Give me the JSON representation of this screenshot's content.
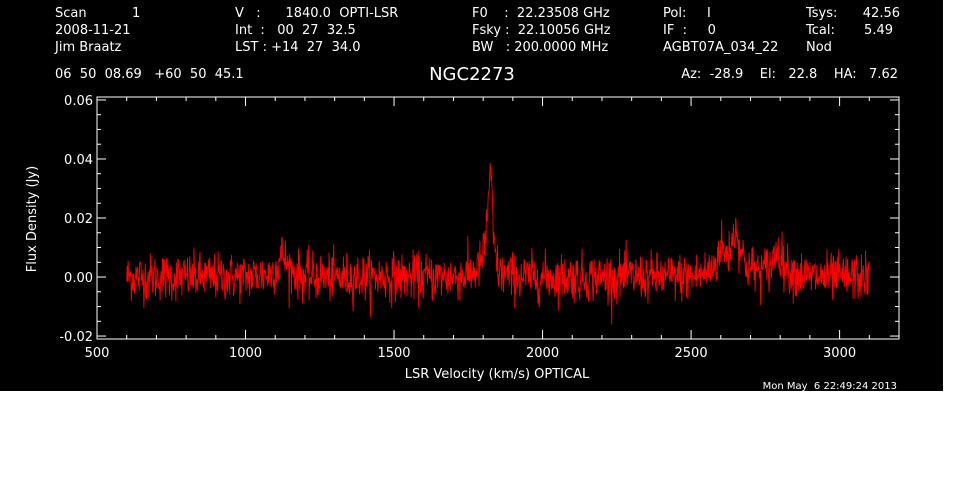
{
  "header": {
    "col1": [
      "Scan           1",
      "2008-11-21",
      "Jim Braatz"
    ],
    "col2": [
      "V   :      1840.0  OPTI-LSR",
      "Int  :   00  27  32.5",
      "LST : +14  27  34.0"
    ],
    "col3": [
      "F0    :  22.23508 GHz",
      "Fsky :  22.10056 GHz",
      "BW   : 200.0000 MHz"
    ],
    "col4": [
      "Pol:     I",
      "IF  :     0",
      "AGBT07A_034_22"
    ],
    "col5_labels": [
      "Tsys:",
      "Tcal:",
      "Nod"
    ],
    "col5_values": [
      "42.56",
      "5.49",
      ""
    ],
    "coords": "06  50  08.69   +60  50  45.1",
    "source": "NGC2273",
    "azelha": "Az:  -28.9    El:   22.8    HA:   7.62",
    "timestamp": "Mon May  6 22:49:24 2013"
  },
  "chart_data": {
    "type": "line",
    "title": "NGC2273",
    "xlabel": "LSR Velocity (km/s) OPTICAL",
    "ylabel": "Flux Density (Jy)",
    "xlim": [
      500,
      3200
    ],
    "ylim": [
      -0.021,
      0.061
    ],
    "x_ticks": [
      500,
      1000,
      1500,
      2000,
      2500,
      3000
    ],
    "y_ticks": [
      -0.02,
      0.0,
      0.02,
      0.04,
      0.06
    ],
    "y_tick_labels": [
      "-0.02",
      "0.00",
      "0.02",
      "0.04",
      "0.06"
    ],
    "line_color": "#ff0000",
    "axis_color": "#ffffff",
    "background": "#000000",
    "noise_rms": 0.004,
    "series": [
      {
        "x": [
          600,
          700,
          800,
          900,
          1000,
          1080,
          1110,
          1125,
          1140,
          1170,
          1200,
          1300,
          1400,
          1500,
          1600,
          1700,
          1760,
          1790,
          1805,
          1815,
          1822,
          1828,
          1834,
          1845,
          1860,
          1900,
          2000,
          2100,
          2200,
          2300,
          2400,
          2500,
          2560,
          2590,
          2600,
          2615,
          2625,
          2640,
          2655,
          2665,
          2680,
          2700,
          2740,
          2770,
          2790,
          2810,
          2830,
          2860,
          2900,
          3000,
          3100
        ],
        "y": [
          0.0,
          0.0,
          0.0,
          0.0,
          0.0,
          0.001,
          0.004,
          0.008,
          0.004,
          0.001,
          0.0,
          0.0,
          0.0,
          0.0,
          0.0,
          0.0,
          0.001,
          0.004,
          0.01,
          0.022,
          0.036,
          0.03,
          0.014,
          0.004,
          0.001,
          0.0,
          0.0,
          0.0,
          0.0,
          0.0,
          0.0,
          0.0,
          0.002,
          0.006,
          0.012,
          0.007,
          0.008,
          0.014,
          0.016,
          0.01,
          0.005,
          0.003,
          0.002,
          0.004,
          0.01,
          0.005,
          0.002,
          0.001,
          0.0,
          0.0,
          0.0
        ]
      }
    ]
  }
}
